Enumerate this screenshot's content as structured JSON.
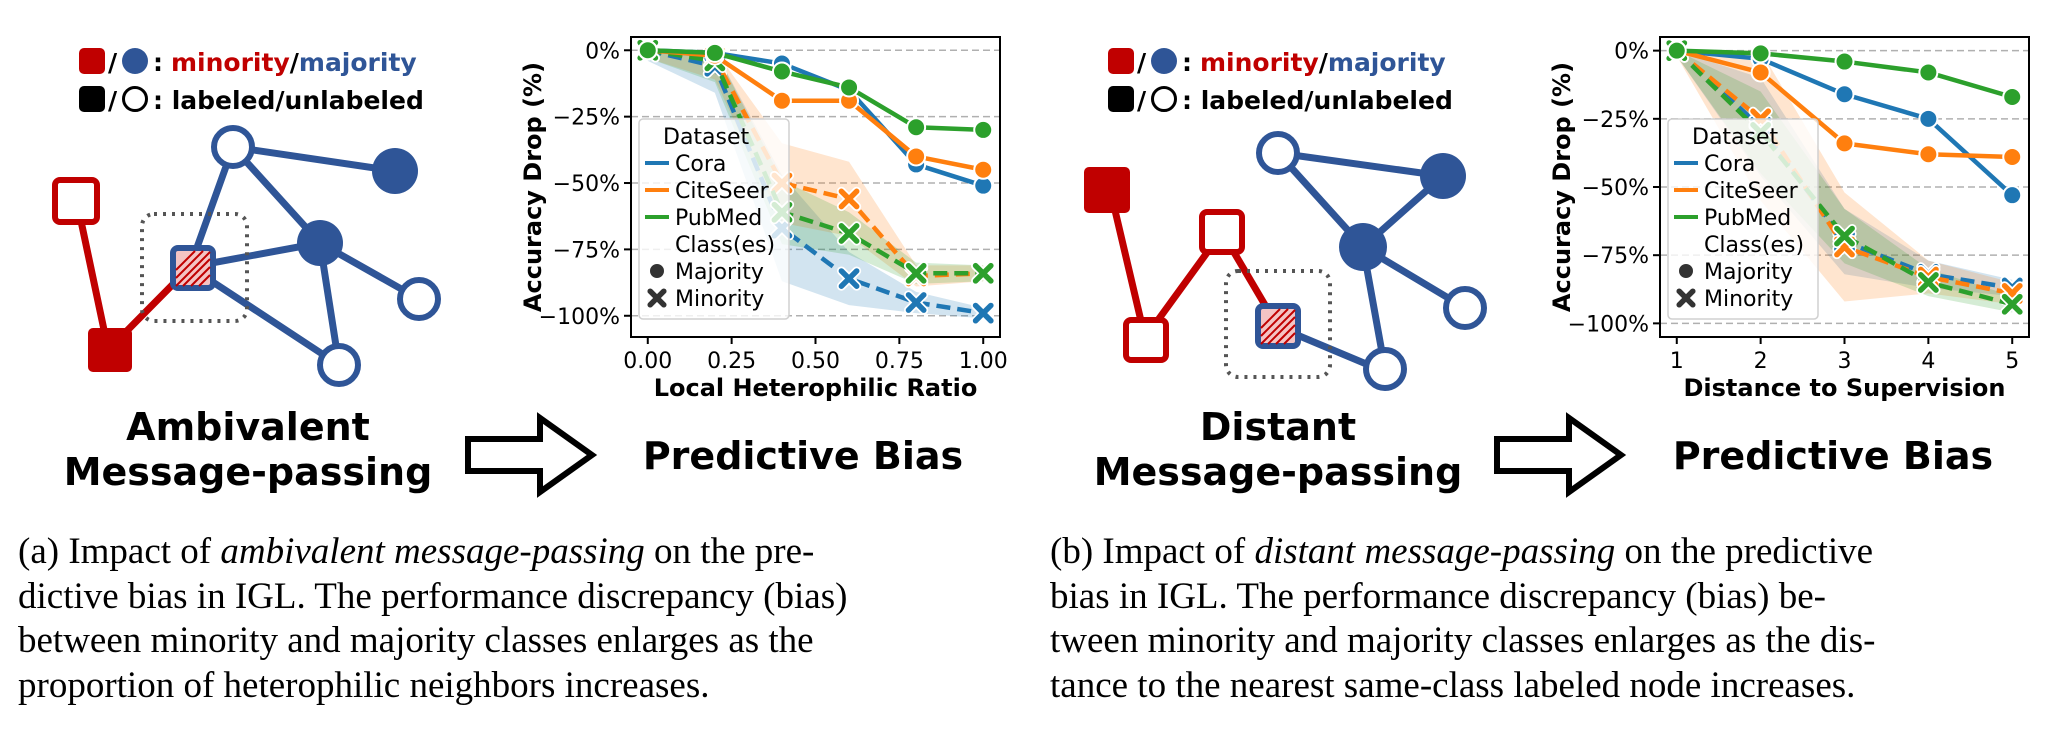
{
  "colors": {
    "minority": "#C00000",
    "majority": "#2F5597",
    "cora": "#1f77b4",
    "citeseer": "#ff7f0e",
    "pubmed": "#2ca02c"
  },
  "legend_key": {
    "colors_suffix": ":",
    "minority_word": "minority",
    "slash": "/",
    "majority_word": "majority",
    "labels_text": ": labeled/unlabeled"
  },
  "panels": [
    {
      "graph_title_line1": "Ambivalent",
      "graph_title_line2": "Message-passing",
      "result_title": "Predictive Bias",
      "caption_lines": [
        [
          "(a) Impact of ",
          "ambivalent message-passing",
          " on the pre-"
        ],
        [
          "dictive bias in IGL. The performance discrepancy (bias)",
          "",
          ""
        ],
        [
          "between minority and majority classes enlarges as the",
          "",
          ""
        ],
        [
          "proportion of heterophilic neighbors increases.",
          "",
          ""
        ]
      ]
    },
    {
      "graph_title_line1": "Distant",
      "graph_title_line2": "Message-passing",
      "result_title": "Predictive Bias",
      "caption_lines": [
        [
          "(b) Impact of ",
          "distant message-passing",
          " on the predictive"
        ],
        [
          "bias in IGL. The performance discrepancy (bias) be-",
          "",
          ""
        ],
        [
          "tween minority and majority classes enlarges as the dis-",
          "",
          ""
        ],
        [
          "tance to the nearest same-class labeled node increases.",
          "",
          ""
        ]
      ]
    }
  ],
  "chart_data": [
    {
      "type": "line",
      "xlabel": "Local Heterophilic Ratio",
      "ylabel": "Accuracy Drop (%)",
      "xlim": [
        -0.05,
        1.05
      ],
      "ylim": [
        -108,
        5
      ],
      "x_ticks": [
        0.0,
        0.25,
        0.5,
        0.75,
        1.0
      ],
      "x_tick_labels": [
        "0.00",
        "0.25",
        "0.50",
        "0.75",
        "1.00"
      ],
      "y_ticks": [
        0,
        -25,
        -50,
        -75,
        -100
      ],
      "y_tick_labels": [
        "0%",
        "−25%",
        "−50%",
        "−75%",
        "−100%"
      ],
      "grid": "horizontal dashed",
      "legend": {
        "placement": "left",
        "title": "Dataset",
        "dataset_entries": [
          "Cora",
          "CiteSeer",
          "PubMed"
        ],
        "class_title": "Class(es)",
        "class_entries": [
          "Majority",
          "Minority"
        ]
      },
      "x": [
        0.0,
        0.2,
        0.4,
        0.6,
        0.8,
        1.0
      ],
      "series": [
        {
          "name": "Cora",
          "class": "Majority",
          "color": "cora",
          "values": [
            0,
            -1,
            -5,
            -15,
            -43,
            -51
          ]
        },
        {
          "name": "CiteSeer",
          "class": "Majority",
          "color": "citeseer",
          "values": [
            0,
            -2,
            -19,
            -19,
            -40,
            -45
          ]
        },
        {
          "name": "PubMed",
          "class": "Majority",
          "color": "pubmed",
          "values": [
            0,
            -1,
            -8,
            -14,
            -29,
            -30
          ]
        },
        {
          "name": "Cora",
          "class": "Minority",
          "color": "cora",
          "values": [
            0,
            -6,
            -67,
            -86,
            -95,
            -99
          ],
          "band": [
            4,
            10,
            20,
            10,
            4,
            2
          ]
        },
        {
          "name": "CiteSeer",
          "class": "Minority",
          "color": "citeseer",
          "values": [
            0,
            -3,
            -50,
            -56,
            -85,
            -84
          ],
          "band": [
            3,
            8,
            15,
            14,
            4,
            3
          ]
        },
        {
          "name": "PubMed",
          "class": "Minority",
          "color": "pubmed",
          "values": [
            0,
            -4,
            -61,
            -69,
            -84,
            -84
          ],
          "band": [
            3,
            8,
            12,
            8,
            4,
            3
          ]
        }
      ]
    },
    {
      "type": "line",
      "xlabel": "Distance to Supervision",
      "ylabel": "Accuracy Drop (%)",
      "xlim": [
        0.8,
        5.2
      ],
      "ylim": [
        -105,
        5
      ],
      "x_ticks": [
        1,
        2,
        3,
        4,
        5
      ],
      "x_tick_labels": [
        "1",
        "2",
        "3",
        "4",
        "5"
      ],
      "y_ticks": [
        0,
        -25,
        -50,
        -75,
        -100
      ],
      "y_tick_labels": [
        "0%",
        "−25%",
        "−50%",
        "−75%",
        "−100%"
      ],
      "grid": "horizontal dashed",
      "legend": {
        "placement": "left",
        "title": "Dataset",
        "dataset_entries": [
          "Cora",
          "CiteSeer",
          "PubMed"
        ],
        "class_title": "Class(es)",
        "class_entries": [
          "Majority",
          "Minority"
        ]
      },
      "x": [
        1,
        2,
        3,
        4,
        5
      ],
      "series": [
        {
          "name": "Cora",
          "class": "Majority",
          "color": "cora",
          "values": [
            0,
            -3,
            -16,
            -25,
            -53
          ]
        },
        {
          "name": "CiteSeer",
          "class": "Majority",
          "color": "citeseer",
          "values": [
            0,
            -8,
            -34,
            -38,
            -39
          ]
        },
        {
          "name": "PubMed",
          "class": "Majority",
          "color": "pubmed",
          "values": [
            0,
            -1,
            -4,
            -8,
            -17
          ]
        },
        {
          "name": "Cora",
          "class": "Minority",
          "color": "cora",
          "values": [
            0,
            -28,
            -70,
            -82,
            -87
          ],
          "band": [
            2,
            18,
            12,
            5,
            3
          ]
        },
        {
          "name": "CiteSeer",
          "class": "Minority",
          "color": "citeseer",
          "values": [
            0,
            -25,
            -72,
            -83,
            -89
          ],
          "band": [
            2,
            30,
            20,
            6,
            4
          ]
        },
        {
          "name": "PubMed",
          "class": "Minority",
          "color": "pubmed",
          "values": [
            0,
            -30,
            -68,
            -85,
            -93
          ],
          "band": [
            2,
            15,
            10,
            5,
            3
          ]
        }
      ]
    }
  ]
}
